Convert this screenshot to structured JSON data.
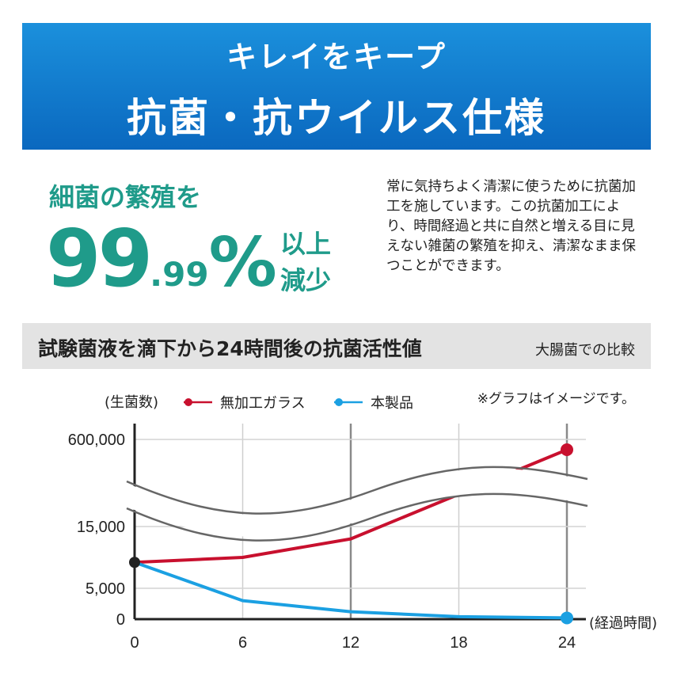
{
  "banner": {
    "line1": "キレイをキープ",
    "line2": "抗菌・抗ウイルス仕様"
  },
  "claim": {
    "lead": "細菌の繁殖を",
    "percent_main": "99",
    "percent_decimal": ".99",
    "percent_sign": "%",
    "tail_line1": "以上",
    "tail_line2": "減少"
  },
  "description": "常に気持ちよく清潔に使うために抗菌加工を施しています。この抗菌加工により、時間経過と共に自然と増える目に見えない雑菌の繁殖を抑え、清潔なまま保つことができます。",
  "section": {
    "title": "試験菌液を滴下から24時間後の抗菌活性値",
    "subtitle": "大腸菌での比較"
  },
  "note": "※グラフはイメージです。",
  "colors": {
    "banner": "#1b90dc",
    "accent_green": "#1f9b8a",
    "series_glass": "#c8102e",
    "series_product": "#1ba0e2"
  },
  "chart_data": {
    "type": "line",
    "ylabel": "(生菌数)",
    "xlabel": "(経過時間)",
    "x_ticks": [
      "0",
      "6",
      "12",
      "18",
      "24"
    ],
    "y_ticks": [
      "0",
      "5,000",
      "15,000",
      "600,000"
    ],
    "y_axis_broken": true,
    "legend_position": "top",
    "series": [
      {
        "name": "無加工ガラス",
        "color": "#c8102e",
        "points": [
          {
            "x": 0,
            "y": 9200
          },
          {
            "x": 6,
            "y": 10000
          },
          {
            "x": 12,
            "y": 13000
          },
          {
            "x": 24,
            "y": 600000
          }
        ]
      },
      {
        "name": "本製品",
        "color": "#1ba0e2",
        "points": [
          {
            "x": 0,
            "y": 9200
          },
          {
            "x": 6,
            "y": 3000
          },
          {
            "x": 12,
            "y": 1200
          },
          {
            "x": 18,
            "y": 400
          },
          {
            "x": 24,
            "y": 200
          }
        ]
      }
    ]
  }
}
